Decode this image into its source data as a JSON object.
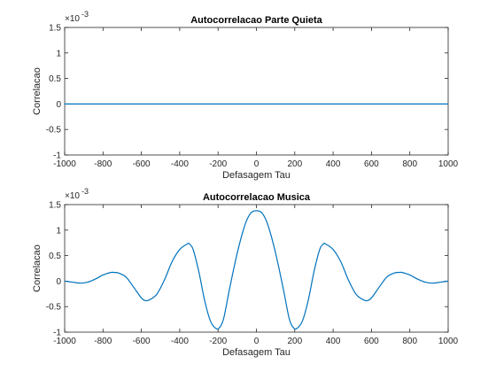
{
  "chart_data": [
    {
      "type": "line",
      "title": "Autocorrelacao Parte Quieta",
      "xlabel": "Defasagem Tau",
      "ylabel": "Correlacao",
      "xlim": [
        -1000,
        1000
      ],
      "ylim": [
        -1,
        1.5
      ],
      "y_exponent_label": "×10",
      "y_exponent": "-3",
      "grid": false,
      "line_color": "#0072BD",
      "x_ticks": [
        -1000,
        -800,
        -600,
        -400,
        -200,
        0,
        200,
        400,
        600,
        800,
        1000
      ],
      "x_tick_labels": [
        "-1000",
        "-800",
        "-600",
        "-400",
        "-200",
        "0",
        "200",
        "400",
        "600",
        "800",
        "1000"
      ],
      "y_ticks": [
        -1,
        -0.5,
        0,
        0.5,
        1,
        1.5
      ],
      "y_tick_labels": [
        "-1",
        "-0.5",
        "0",
        "0.5",
        "1",
        "1.5"
      ],
      "series": [
        {
          "x": [
            -1000,
            1000
          ],
          "y": [
            0,
            0
          ]
        }
      ]
    },
    {
      "type": "line",
      "title": "Autocorrelacao Musica",
      "xlabel": "Defasagem Tau",
      "ylabel": "Correlacao",
      "xlim": [
        -1000,
        1000
      ],
      "ylim": [
        -1,
        1.5
      ],
      "y_exponent_label": "×10",
      "y_exponent": "-3",
      "grid": false,
      "line_color": "#0072BD",
      "x_ticks": [
        -1000,
        -800,
        -600,
        -400,
        -200,
        0,
        200,
        400,
        600,
        800,
        1000
      ],
      "x_tick_labels": [
        "-1000",
        "-800",
        "-600",
        "-400",
        "-200",
        "0",
        "200",
        "400",
        "600",
        "800",
        "1000"
      ],
      "y_ticks": [
        -1,
        -0.5,
        0,
        0.5,
        1,
        1.5
      ],
      "y_tick_labels": [
        "-1",
        "-0.5",
        "0",
        "0.5",
        "1",
        "1.5"
      ],
      "series": [
        {
          "x": [
            -1000,
            -960,
            -920,
            -880,
            -840,
            -800,
            -760,
            -740,
            -720,
            -680,
            -640,
            -600,
            -580,
            -560,
            -520,
            -480,
            -440,
            -400,
            -360,
            -350,
            -330,
            -300,
            -270,
            -240,
            -210,
            -190,
            -170,
            -140,
            -100,
            -60,
            -30,
            0,
            30,
            60,
            100,
            140,
            170,
            190,
            210,
            240,
            270,
            300,
            330,
            350,
            360,
            400,
            440,
            480,
            520,
            560,
            580,
            600,
            640,
            680,
            720,
            740,
            760,
            800,
            840,
            880,
            920,
            960,
            1000
          ],
          "y": [
            0.0,
            -0.02,
            -0.04,
            -0.02,
            0.04,
            0.12,
            0.17,
            0.17,
            0.16,
            0.08,
            -0.12,
            -0.33,
            -0.38,
            -0.37,
            -0.26,
            0.02,
            0.38,
            0.62,
            0.73,
            0.73,
            0.62,
            0.18,
            -0.38,
            -0.78,
            -0.93,
            -0.9,
            -0.72,
            -0.15,
            0.55,
            1.1,
            1.33,
            1.38,
            1.33,
            1.1,
            0.55,
            -0.15,
            -0.72,
            -0.9,
            -0.93,
            -0.78,
            -0.38,
            0.18,
            0.62,
            0.73,
            0.73,
            0.62,
            0.38,
            0.02,
            -0.26,
            -0.37,
            -0.38,
            -0.33,
            -0.12,
            0.08,
            0.16,
            0.17,
            0.17,
            0.12,
            0.04,
            -0.02,
            -0.04,
            -0.02,
            0.0
          ]
        }
      ]
    }
  ]
}
